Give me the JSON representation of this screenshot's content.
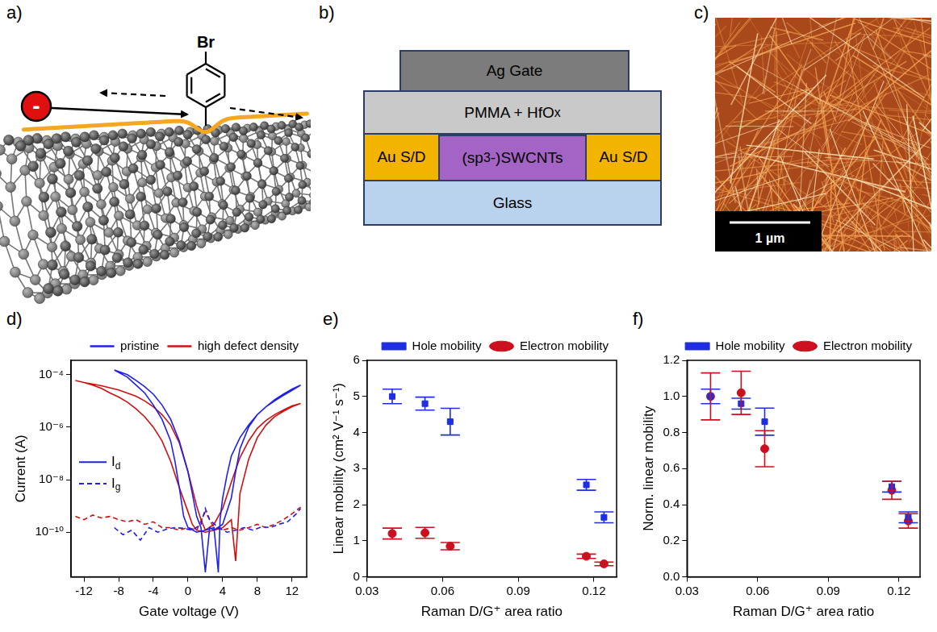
{
  "diagrams": {
    "a": {
      "panel_label": "a)",
      "substituent": "Br",
      "charge": "-"
    },
    "b": {
      "panel_label": "b)",
      "layers": {
        "gate": [
          "Ag Gate"
        ],
        "dielectric": [
          "PMMA + HfO",
          {
            "sub": "x"
          }
        ],
        "channel": [
          "(sp",
          {
            "sup": "3"
          },
          "-)SWCNTs"
        ],
        "contacts": [
          "Au S/D"
        ],
        "substrate": [
          "Glass"
        ]
      }
    },
    "c": {
      "panel_label": "c)",
      "scale_bar": "1 µm"
    }
  },
  "chart_data": [
    {
      "panel_label": "d)",
      "type": "line",
      "x_label": "Gate voltage (V)",
      "y_label": "Current (A)",
      "log": "y",
      "grid": false,
      "legend": "top",
      "xlim": [
        -13.5,
        13.7
      ],
      "ylim": [
        2e-12,
        0.00035
      ],
      "xticks": [
        -12,
        -8,
        -4,
        0,
        4,
        8,
        12
      ],
      "yticks": [
        {
          "value": 1e-10,
          "label": "10⁻¹⁰"
        },
        {
          "value": 1e-08,
          "label": "10⁻⁸"
        },
        {
          "value": 1e-06,
          "label": "10⁻⁶"
        },
        {
          "value": 0.0001,
          "label": "10⁻⁴"
        }
      ],
      "annotations": [
        {
          "text": [
            "I",
            {
              "sub": "d"
            }
          ],
          "line_style": "solid",
          "color": "#1f1fee"
        },
        {
          "text": [
            "I",
            {
              "sub": "g"
            }
          ],
          "line_style": "dashed",
          "color": "#1f1fee"
        }
      ],
      "series": [
        {
          "name": "pristine",
          "color": "#1f1fee",
          "line_style": "solid",
          "x": [
            -8.5,
            -7,
            -6,
            -5,
            -4,
            -3,
            -2,
            -1,
            0,
            0.5,
            1,
            1.5,
            2,
            2.5,
            3,
            4,
            5,
            5.5,
            6,
            7,
            8,
            9,
            10,
            11,
            12,
            13,
            12,
            11,
            10,
            9,
            8,
            7,
            6,
            5,
            4.5,
            4,
            3.7,
            3.5,
            3,
            2,
            1,
            0,
            -0.5,
            -1,
            -1.5,
            -2,
            -3,
            -4,
            -5,
            -6,
            -7,
            -8.5
          ],
          "values": [
            0.00015,
            0.0001,
            6e-05,
            3.5e-05,
            1.8e-05,
            7e-06,
            2e-06,
            3e-07,
            2e-08,
            3e-09,
            4e-10,
            1.5e-10,
            3e-12,
            1.5e-10,
            1.2e-10,
            2e-10,
            2e-09,
            2e-08,
            1.5e-07,
            1e-06,
            3e-06,
            6e-06,
            1e-05,
            1.6e-05,
            2.5e-05,
            4e-05,
            2.8e-05,
            1.8e-05,
            1.1e-05,
            6e-06,
            3e-06,
            1.2e-06,
            4e-07,
            8e-08,
            1.5e-08,
            2e-09,
            3e-10,
            3e-12,
            1.5e-10,
            1.2e-10,
            1e-10,
            1.5e-10,
            4e-10,
            5e-09,
            5e-08,
            3e-07,
            2e-06,
            7e-06,
            2e-05,
            4e-05,
            8e-05,
            0.00015
          ]
        },
        {
          "name": "pristine",
          "color": "#1f1fee",
          "line_style": "dashed",
          "x": [
            -8.5,
            -7.5,
            -6.5,
            -5.5,
            -4.5,
            -3.5,
            -2.5,
            -1.5,
            -0.5,
            0.5,
            1.5,
            2,
            2.5,
            3.5,
            4.5,
            5.5,
            6.5,
            7.5,
            8.5,
            9.5,
            10.5,
            11.5,
            12.5,
            13
          ],
          "values": [
            1.5e-10,
            8e-11,
            1.2e-10,
            5e-11,
            1.5e-10,
            1e-10,
            1.3e-10,
            1.5e-10,
            1.4e-10,
            1.2e-10,
            2e-10,
            8e-10,
            3e-10,
            1.5e-10,
            1e-10,
            1.2e-10,
            1.5e-10,
            1.2e-10,
            1.6e-10,
            1.5e-10,
            2e-10,
            2.5e-10,
            5e-10,
            8e-10
          ]
        },
        {
          "name": "high defect density",
          "color": "#d01010",
          "line_style": "solid",
          "x": [
            -13,
            -12,
            -11,
            -10,
            -9,
            -8,
            -7,
            -6,
            -5,
            -4,
            -3,
            -2,
            -1,
            0,
            0.5,
            1,
            2,
            3,
            4,
            5,
            5.5,
            6,
            7,
            8,
            9,
            10,
            11,
            12,
            13,
            12,
            11,
            10,
            9,
            8,
            7,
            6,
            5,
            4,
            3,
            2,
            1.5,
            1,
            0,
            -1,
            -2,
            -3,
            -4,
            -5,
            -6,
            -8,
            -10,
            -12,
            -13
          ],
          "values": [
            6e-05,
            5e-05,
            4e-05,
            3e-05,
            2e-05,
            1.4e-05,
            9e-06,
            5e-06,
            2.5e-06,
            1e-06,
            3e-07,
            5e-08,
            5e-09,
            6e-10,
            2e-10,
            1.2e-10,
            1e-10,
            1.2e-10,
            1.5e-10,
            3e-10,
            8e-12,
            3e-09,
            6e-08,
            4e-07,
            1.2e-06,
            2.5e-06,
            4e-06,
            6e-06,
            8e-06,
            6.5e-06,
            4.5e-06,
            3e-06,
            1.8e-06,
            9e-07,
            3e-07,
            7e-08,
            8e-09,
            8e-10,
            2e-10,
            1.2e-10,
            3e-10,
            1e-09,
            2e-08,
            2.5e-07,
            1.2e-06,
            3e-06,
            6e-06,
            1e-05,
            1.5e-05,
            2.6e-05,
            3.8e-05,
            5e-05,
            6e-05
          ]
        },
        {
          "name": "high defect density",
          "color": "#d01010",
          "line_style": "dashed",
          "x": [
            -13,
            -12,
            -11,
            -10,
            -9,
            -8,
            -7,
            -6,
            -5,
            -4,
            -3,
            -2,
            -1,
            0,
            1,
            2,
            3,
            4,
            5,
            6,
            7,
            8,
            9,
            10,
            11,
            12,
            13
          ],
          "values": [
            4e-10,
            3e-10,
            4.5e-10,
            3.5e-10,
            4e-10,
            3e-10,
            2.5e-10,
            3e-10,
            2e-10,
            2.5e-10,
            1.5e-10,
            1.5e-10,
            1.2e-10,
            1.5e-10,
            1.2e-10,
            6e-10,
            1.5e-10,
            1.2e-10,
            1.5e-10,
            1.2e-10,
            1.5e-10,
            2e-10,
            1.5e-10,
            2e-10,
            3e-10,
            5e-10,
            9e-10
          ]
        }
      ]
    },
    {
      "panel_label": "e)",
      "type": "scatter",
      "x_label": "Raman D/G⁺ area ratio",
      "y_label": "Linear mobility (cm² V⁻¹ s⁻¹)",
      "grid": false,
      "legend": "top",
      "xlim": [
        0.03,
        0.129
      ],
      "ylim": [
        0,
        6
      ],
      "xticks": [
        0.03,
        0.06,
        0.09,
        0.12
      ],
      "yticks": [
        0,
        1,
        2,
        3,
        4,
        5,
        6
      ],
      "series": [
        {
          "name": "Hole mobility",
          "color": "#1f2fe0",
          "marker": "square",
          "x": [
            0.04,
            0.053,
            0.063,
            0.117,
            0.124
          ],
          "values": [
            5.0,
            4.8,
            4.3,
            2.55,
            1.65
          ],
          "errors": [
            0.2,
            0.18,
            0.37,
            0.15,
            0.15
          ]
        },
        {
          "name": "Electron mobility",
          "color": "#cc1020",
          "marker": "circle",
          "x": [
            0.04,
            0.053,
            0.063,
            0.117,
            0.124
          ],
          "values": [
            1.2,
            1.22,
            0.85,
            0.57,
            0.36
          ],
          "errors": [
            0.15,
            0.15,
            0.1,
            0.06,
            0.05
          ]
        }
      ]
    },
    {
      "panel_label": "f)",
      "type": "scatter",
      "x_label": "Raman D/G⁺ area ratio",
      "y_label": "Norm. linear mobility",
      "grid": false,
      "legend": "top",
      "xlim": [
        0.03,
        0.129
      ],
      "ylim": [
        0,
        1.2
      ],
      "xticks": [
        0.03,
        0.06,
        0.09,
        0.12
      ],
      "yticks": [
        {
          "value": 0,
          "label": "0.0"
        },
        0.2,
        0.4,
        0.6,
        0.8,
        {
          "value": 1,
          "label": "1.0"
        },
        1.2
      ],
      "series": [
        {
          "name": "Hole mobility",
          "color": "#1f2fe0",
          "marker": "square",
          "x": [
            0.04,
            0.053,
            0.063,
            0.117,
            0.124
          ],
          "values": [
            1.0,
            0.96,
            0.86,
            0.5,
            0.33
          ],
          "errors": [
            0.04,
            0.03,
            0.075,
            0.03,
            0.03
          ]
        },
        {
          "name": "Electron mobility",
          "color": "#cc1020",
          "marker": "circle",
          "x": [
            0.04,
            0.053,
            0.063,
            0.117,
            0.124
          ],
          "values": [
            1.0,
            1.02,
            0.71,
            0.48,
            0.31
          ],
          "errors": [
            0.13,
            0.12,
            0.1,
            0.05,
            0.04
          ]
        }
      ]
    }
  ]
}
